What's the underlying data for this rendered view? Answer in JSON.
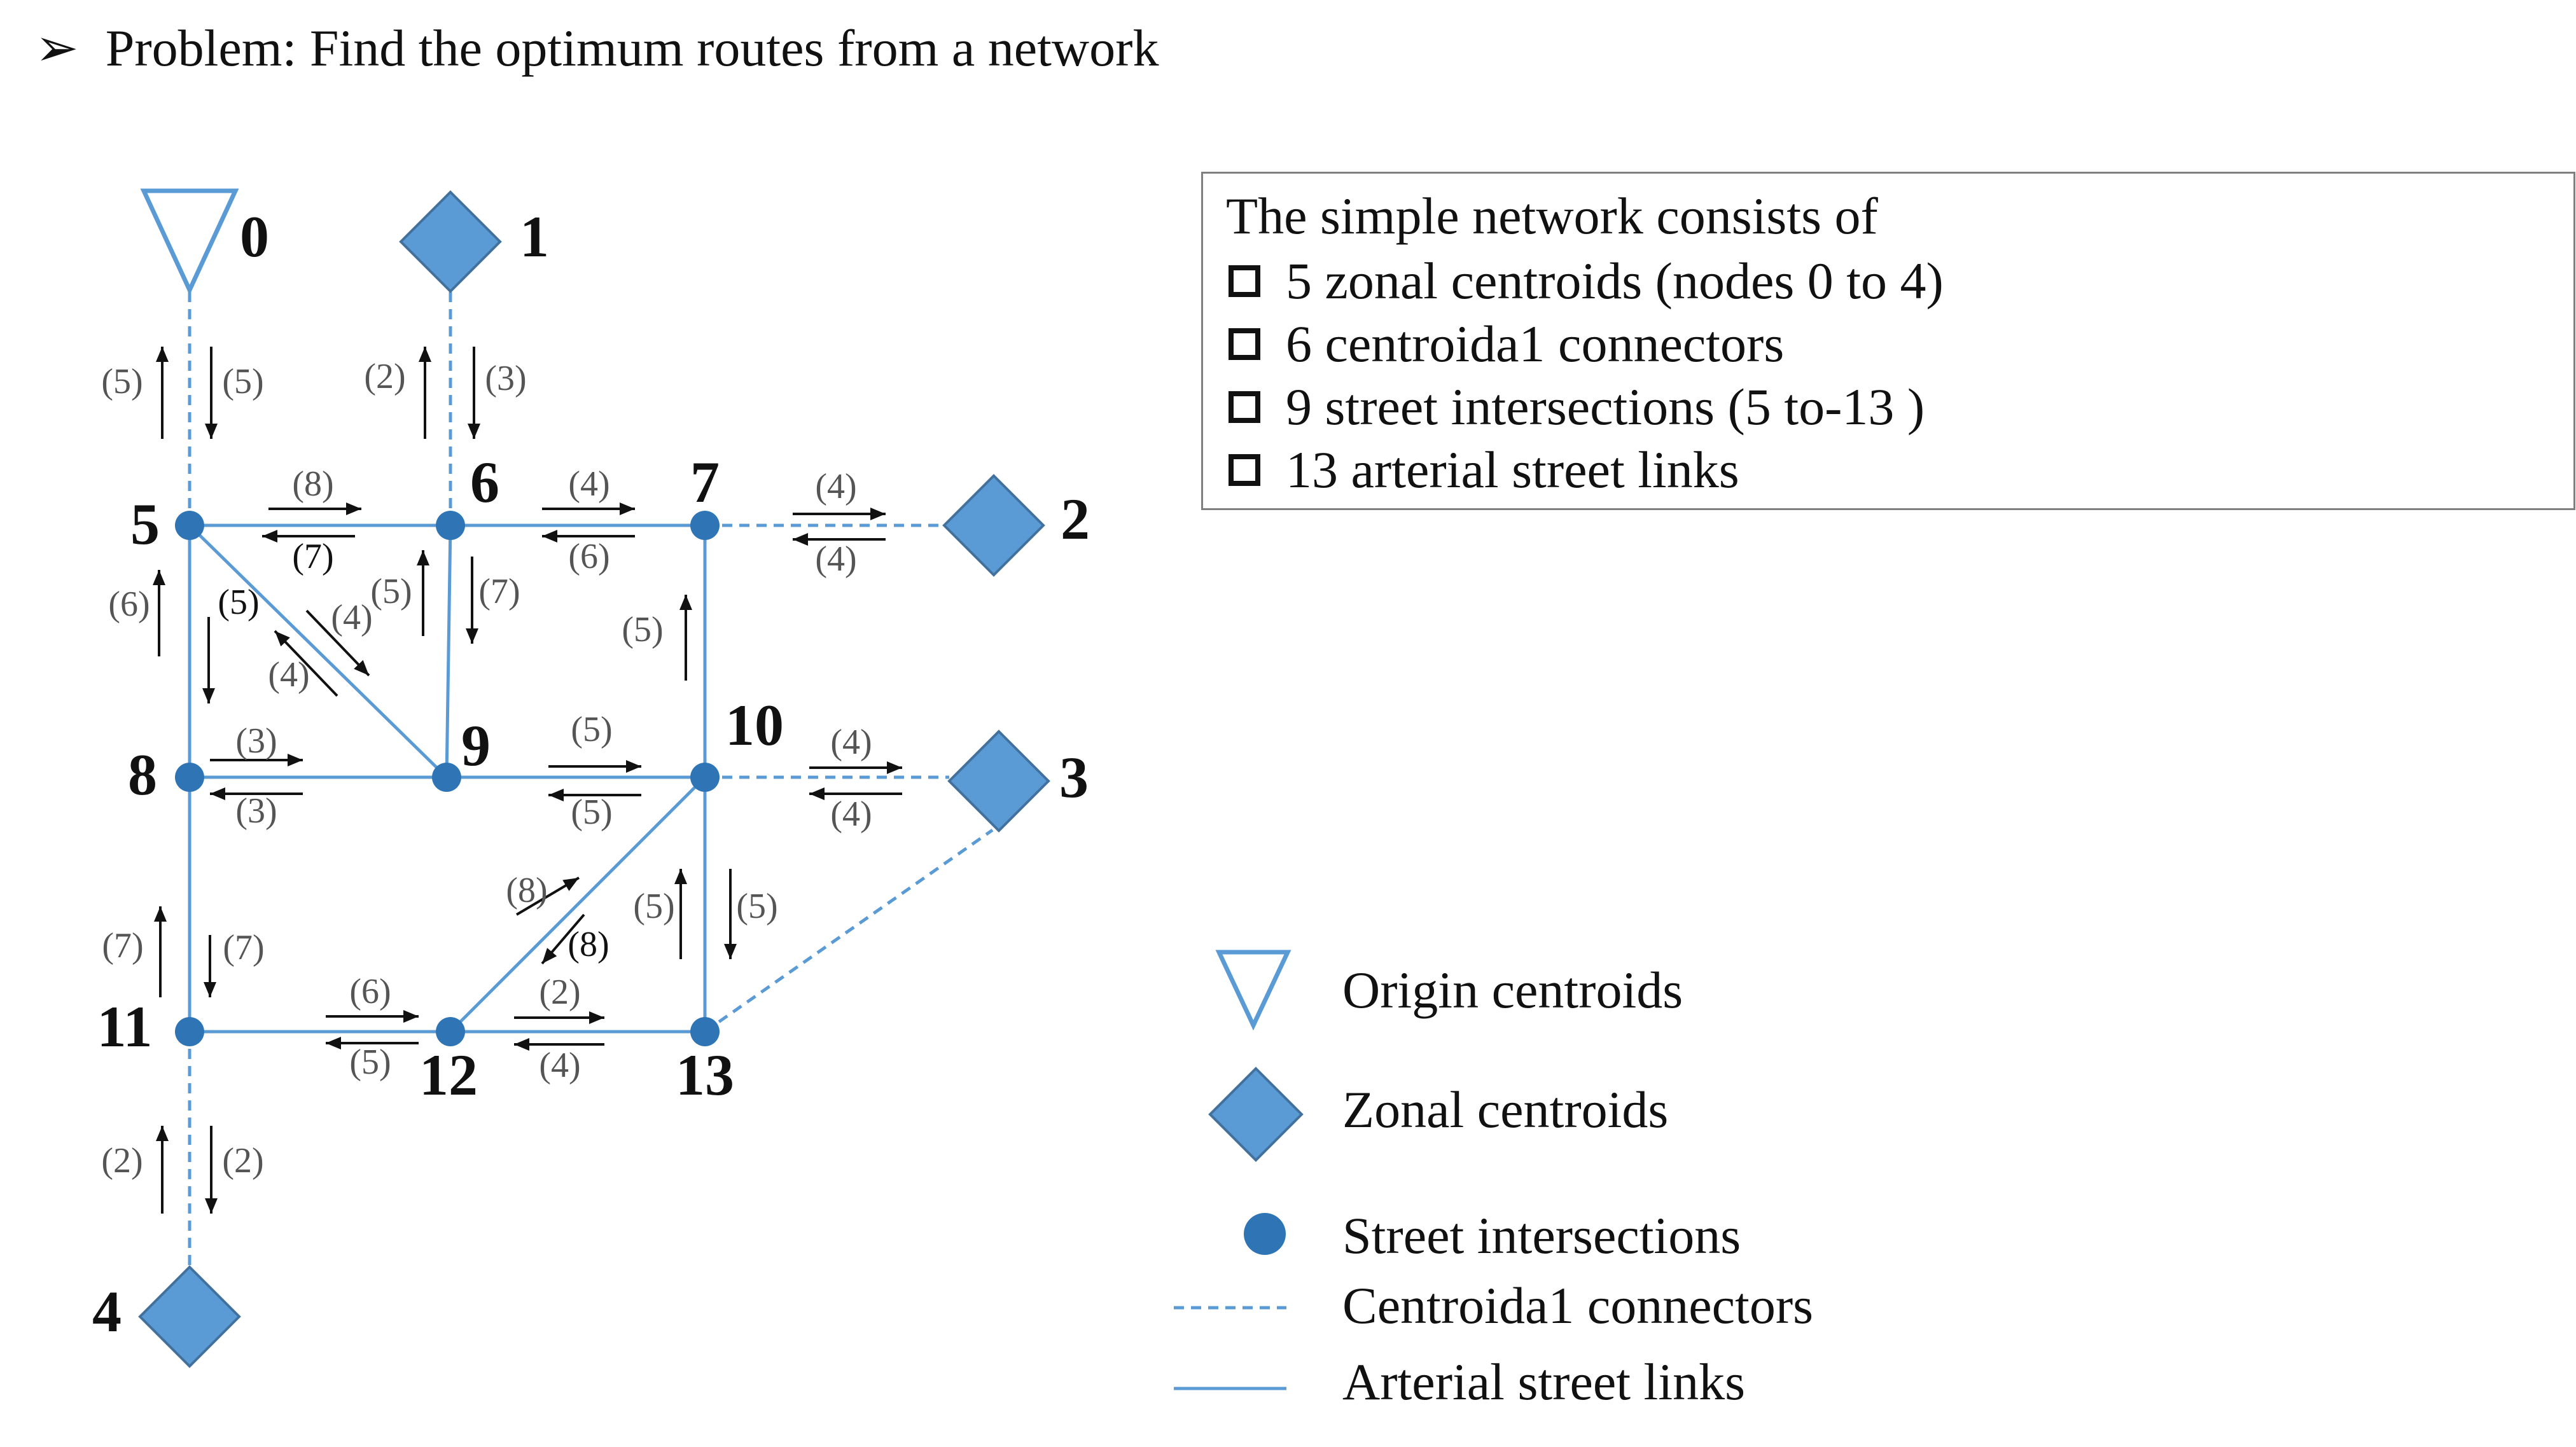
{
  "title": {
    "bullet": "➢",
    "text": "Problem: Find the optimum routes from a network"
  },
  "colors": {
    "node": "#2f75b5",
    "centroid": "#5b9bd5",
    "centroid_stroke": "#41719c",
    "link": "#5b9bd5",
    "text": "#111111",
    "gray_text": "#555555"
  },
  "info": {
    "heading": "The simple network consists of",
    "items": [
      "5 zonal centroids (nodes 0 to 4)",
      "6 centroida1 connectors",
      "9 street intersections (5 to-13 )",
      "13 arterial street links"
    ]
  },
  "legend": {
    "origin": "Origin centroids",
    "zonal": "Zonal centroids",
    "intersection": "Street intersections",
    "connector": "Centroida1 connectors",
    "arterial": "Arterial street links"
  },
  "network": {
    "centroids": [
      {
        "id": "0",
        "shape": "triangle"
      },
      {
        "id": "1",
        "shape": "diamond"
      },
      {
        "id": "2",
        "shape": "diamond"
      },
      {
        "id": "3",
        "shape": "diamond"
      },
      {
        "id": "4",
        "shape": "diamond"
      }
    ],
    "intersections": [
      "5",
      "6",
      "7",
      "8",
      "9",
      "10",
      "11",
      "12",
      "13"
    ],
    "arterial_links": [
      [
        "5",
        "6"
      ],
      [
        "6",
        "7"
      ],
      [
        "5",
        "8"
      ],
      [
        "6",
        "9"
      ],
      [
        "7",
        "10"
      ],
      [
        "5",
        "9"
      ],
      [
        "8",
        "9"
      ],
      [
        "9",
        "10"
      ],
      [
        "8",
        "11"
      ],
      [
        "10",
        "12"
      ],
      [
        "10",
        "13"
      ],
      [
        "11",
        "12"
      ],
      [
        "12",
        "13"
      ]
    ],
    "connectors": [
      [
        "0",
        "5"
      ],
      [
        "1",
        "6"
      ],
      [
        "7",
        "2"
      ],
      [
        "10",
        "3"
      ],
      [
        "13",
        "3"
      ],
      [
        "11",
        "4"
      ]
    ],
    "costs": [
      {
        "from": "0",
        "to": "5",
        "forward": "(5)",
        "backward": "(5)"
      },
      {
        "from": "1",
        "to": "6",
        "forward": "(3)",
        "backward": "(2)"
      },
      {
        "from": "5",
        "to": "6",
        "forward": "(8)",
        "backward": "(7)"
      },
      {
        "from": "6",
        "to": "7",
        "forward": "(4)",
        "backward": "(6)"
      },
      {
        "from": "7",
        "to": "2",
        "forward": "(4)",
        "backward": "(4)"
      },
      {
        "from": "5",
        "to": "8",
        "forward": "(5)",
        "backward": "(6)"
      },
      {
        "from": "5",
        "to": "9",
        "forward": "(4)",
        "backward": "(4)"
      },
      {
        "from": "6",
        "to": "9",
        "forward": "(7)",
        "backward": "(5)"
      },
      {
        "from": "10",
        "to": "7",
        "forward": "(5)",
        "backward": ""
      },
      {
        "from": "8",
        "to": "9",
        "forward": "(3)",
        "backward": "(3)"
      },
      {
        "from": "9",
        "to": "10",
        "forward": "(5)",
        "backward": "(5)"
      },
      {
        "from": "10",
        "to": "3",
        "forward": "(4)",
        "backward": "(4)"
      },
      {
        "from": "8",
        "to": "11",
        "forward": "(7)",
        "backward": "(7)"
      },
      {
        "from": "12",
        "to": "10",
        "forward": "(8)",
        "backward": "(8)"
      },
      {
        "from": "10",
        "to": "13",
        "forward": "(5)",
        "backward": "(5)"
      },
      {
        "from": "11",
        "to": "12",
        "forward": "(6)",
        "backward": "(5)"
      },
      {
        "from": "12",
        "to": "13",
        "forward": "(2)",
        "backward": "(4)"
      },
      {
        "from": "11",
        "to": "4",
        "forward": "(2)",
        "backward": "(2)"
      }
    ]
  }
}
